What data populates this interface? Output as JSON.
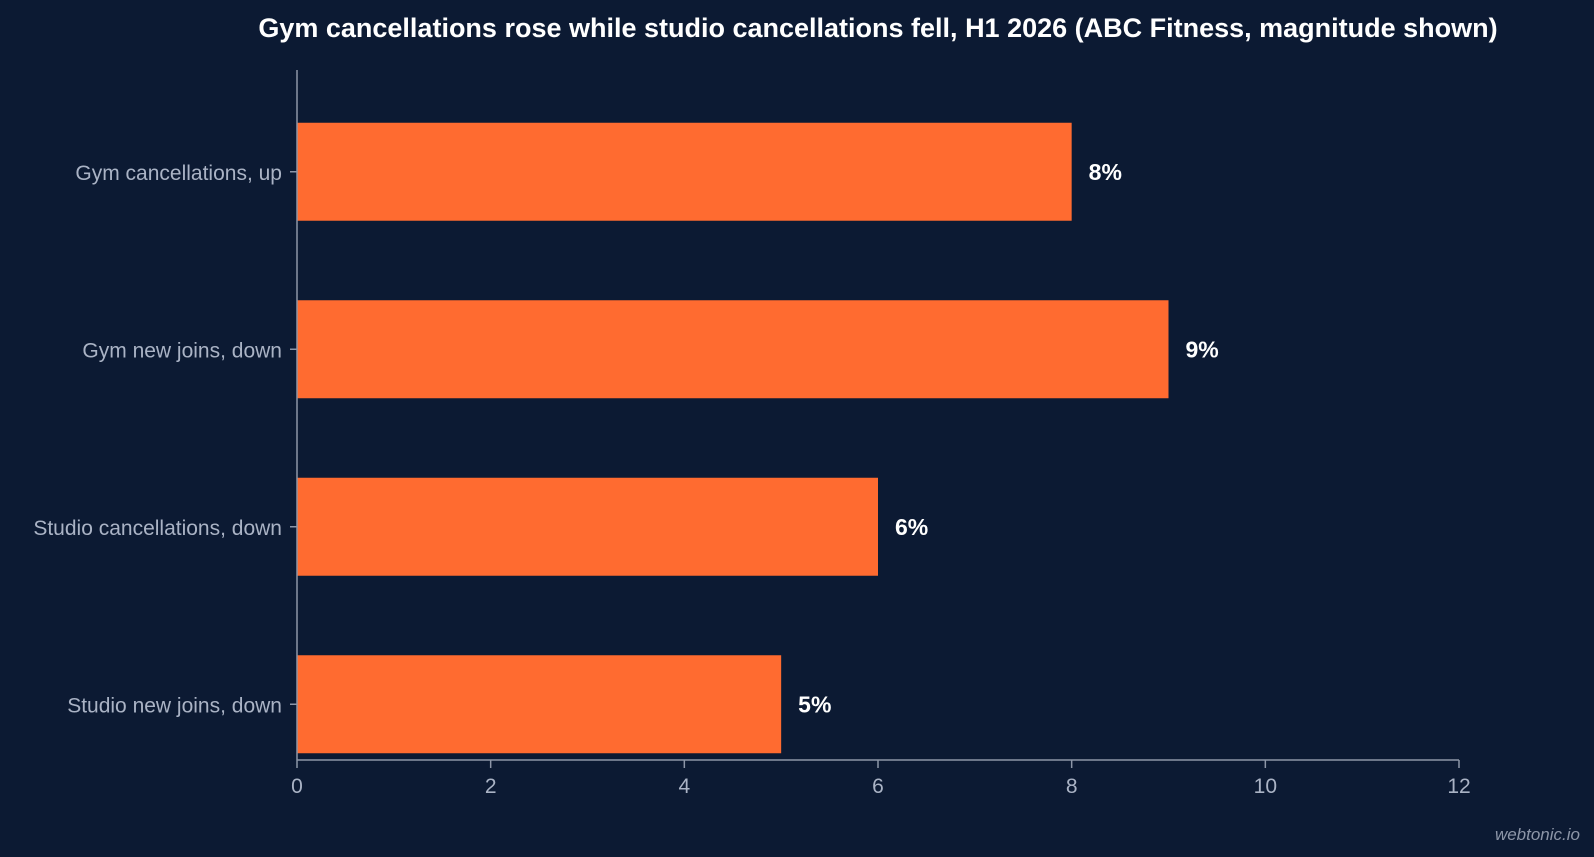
{
  "colors": {
    "background": "#0c1a33",
    "bar": "#ff6b30",
    "axis": "#8d96a8",
    "label": "#aab3c5",
    "title": "#ffffff"
  },
  "chart_data": {
    "type": "bar",
    "orientation": "horizontal",
    "title": "Gym cancellations rose while studio cancellations fell, H1 2026 (ABC Fitness, magnitude shown)",
    "xlabel": "",
    "ylabel": "",
    "categories": [
      "Gym cancellations, up",
      "Gym new joins, down",
      "Studio cancellations, down",
      "Studio new joins, down"
    ],
    "values": [
      8,
      9,
      6,
      5
    ],
    "value_labels": [
      "8%",
      "9%",
      "6%",
      "5%"
    ],
    "xlim": [
      0,
      12
    ],
    "xticks": [
      0,
      2,
      4,
      6,
      8,
      10,
      12
    ],
    "xtick_labels": [
      "0",
      "2",
      "4",
      "6",
      "8",
      "10",
      "12"
    ],
    "grid": false,
    "legend": "none"
  },
  "watermark": "webtonic.io"
}
